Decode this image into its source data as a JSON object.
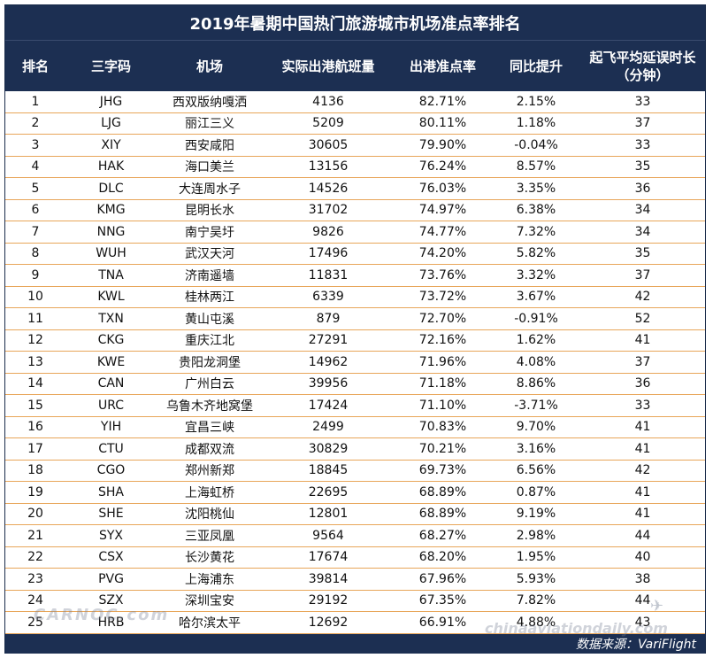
{
  "title": "2019年暑期中国热门旅游城市机场准点率排名",
  "headers": [
    "排名",
    "三字码",
    "机场",
    "实际出港航班量",
    "出港准点率",
    "同比提升",
    "起飞平均延误时长\n（分钟）"
  ],
  "rows": [
    [
      "1",
      "JHG",
      "西双版纳嘎洒",
      "4136",
      "82.71%",
      "2.15%",
      "33"
    ],
    [
      "2",
      "LJG",
      "丽江三义",
      "5209",
      "80.11%",
      "1.18%",
      "37"
    ],
    [
      "3",
      "XIY",
      "西安咸阳",
      "30605",
      "79.90%",
      "-0.04%",
      "33"
    ],
    [
      "4",
      "HAK",
      "海口美兰",
      "13156",
      "76.24%",
      "8.57%",
      "35"
    ],
    [
      "5",
      "DLC",
      "大连周水子",
      "14526",
      "76.03%",
      "3.35%",
      "36"
    ],
    [
      "6",
      "KMG",
      "昆明长水",
      "31702",
      "74.97%",
      "6.38%",
      "34"
    ],
    [
      "7",
      "NNG",
      "南宁吴圩",
      "9826",
      "74.77%",
      "7.32%",
      "34"
    ],
    [
      "8",
      "WUH",
      "武汉天河",
      "17496",
      "74.20%",
      "5.82%",
      "35"
    ],
    [
      "9",
      "TNA",
      "济南遥墙",
      "11831",
      "73.76%",
      "3.32%",
      "37"
    ],
    [
      "10",
      "KWL",
      "桂林两江",
      "6339",
      "73.72%",
      "3.67%",
      "42"
    ],
    [
      "11",
      "TXN",
      "黄山屯溪",
      "879",
      "72.70%",
      "-0.91%",
      "52"
    ],
    [
      "12",
      "CKG",
      "重庆江北",
      "27291",
      "72.16%",
      "1.62%",
      "41"
    ],
    [
      "13",
      "KWE",
      "贵阳龙洞堡",
      "14962",
      "71.96%",
      "4.08%",
      "37"
    ],
    [
      "14",
      "CAN",
      "广州白云",
      "39956",
      "71.18%",
      "8.86%",
      "36"
    ],
    [
      "15",
      "URC",
      "乌鲁木齐地窝堡",
      "17424",
      "71.10%",
      "-3.71%",
      "33"
    ],
    [
      "16",
      "YIH",
      "宜昌三峡",
      "2499",
      "70.83%",
      "9.70%",
      "41"
    ],
    [
      "17",
      "CTU",
      "成都双流",
      "30829",
      "70.21%",
      "3.16%",
      "41"
    ],
    [
      "18",
      "CGO",
      "郑州新郑",
      "18845",
      "69.73%",
      "6.56%",
      "42"
    ],
    [
      "19",
      "SHA",
      "上海虹桥",
      "22695",
      "68.89%",
      "0.87%",
      "41"
    ],
    [
      "20",
      "SHE",
      "沈阳桃仙",
      "12801",
      "68.89%",
      "9.19%",
      "41"
    ],
    [
      "21",
      "SYX",
      "三亚凤凰",
      "9564",
      "68.27%",
      "2.98%",
      "44"
    ],
    [
      "22",
      "CSX",
      "长沙黄花",
      "17674",
      "68.20%",
      "1.95%",
      "40"
    ],
    [
      "23",
      "PVG",
      "上海浦东",
      "39814",
      "67.96%",
      "5.93%",
      "38"
    ],
    [
      "24",
      "SZX",
      "深圳宝安",
      "29192",
      "67.35%",
      "7.82%",
      "44"
    ],
    [
      "25",
      "HRB",
      "哈尔滨太平",
      "12692",
      "66.91%",
      "4.88%",
      "43"
    ]
  ],
  "footer": "数据来源：VariFlight",
  "watermark_left": "CARNOC.com",
  "watermark_right": "chinaaviationdaily.com"
}
